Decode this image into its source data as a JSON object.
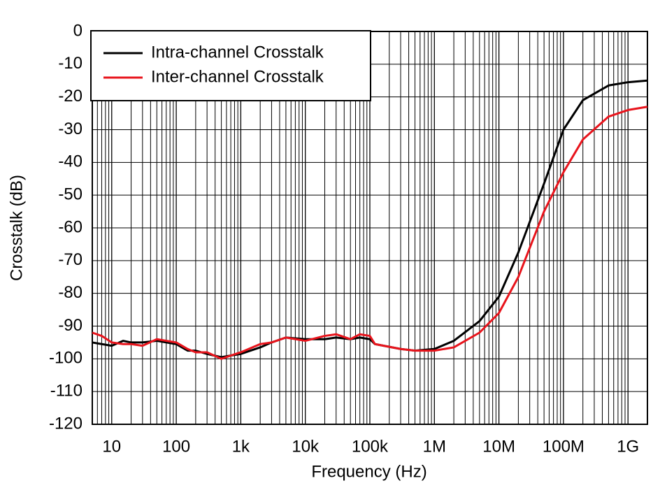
{
  "chart_data": {
    "type": "line",
    "x_label": "Frequency (Hz)",
    "y_label": "Crosstalk (dB)",
    "log_x": true,
    "grid": true,
    "legend": "upper left",
    "xlim": [
      5,
      2000000000
    ],
    "xticks": [
      10,
      100,
      {
        "value": 1000,
        "label": "1k"
      },
      {
        "value": 10000,
        "label": "10k"
      },
      {
        "value": 100000,
        "label": "100k"
      },
      {
        "value": 1000000,
        "label": "1M"
      },
      {
        "value": 10000000,
        "label": "10M"
      },
      {
        "value": 100000000,
        "label": "100M"
      },
      {
        "value": 1000000000,
        "label": "1G"
      }
    ],
    "ylim": [
      -120,
      0
    ],
    "yticks": [
      0,
      -10,
      -20,
      -30,
      -40,
      -50,
      -60,
      -70,
      -80,
      -90,
      -100,
      -110,
      -120
    ],
    "x": [
      5,
      7,
      10,
      15,
      20,
      30,
      50,
      100,
      150,
      200,
      300,
      500,
      700,
      1000,
      2000,
      3000,
      5000,
      10000,
      20000,
      30000,
      50000,
      70000,
      100000,
      120000,
      300000,
      500000,
      1000000,
      2000000,
      5000000,
      10000000,
      20000000,
      50000000,
      100000000,
      200000000,
      500000000,
      1000000000,
      2000000000
    ],
    "series": [
      {
        "name": "Intra-channel Crosstalk",
        "color": "#000000",
        "values": [
          -95,
          -95.5,
          -96,
          -94.5,
          -95,
          -95,
          -94.5,
          -95.5,
          -97.5,
          -97.5,
          -98.5,
          -99.5,
          -99,
          -98.5,
          -96.5,
          -95,
          -93.5,
          -94,
          -94,
          -93.5,
          -94,
          -93.5,
          -94,
          -95.5,
          -97,
          -97.5,
          -97,
          -94.5,
          -88.5,
          -81,
          -67.5,
          -46.5,
          -30,
          -21,
          -16.5,
          -15.5,
          -15
        ]
      },
      {
        "name": "Inter-channel Crosstalk",
        "color": "#e8141c",
        "values": [
          -92,
          -93,
          -95,
          -95.5,
          -95.5,
          -96,
          -94,
          -95,
          -97,
          -98,
          -98,
          -100,
          -99,
          -98,
          -95.5,
          -95,
          -93.5,
          -94.5,
          -93,
          -92.5,
          -94,
          -92.5,
          -93,
          -95.5,
          -97,
          -97.5,
          -97.5,
          -96.5,
          -92,
          -86,
          -75,
          -55,
          -43,
          -33,
          -26,
          -24,
          -23
        ]
      }
    ]
  }
}
